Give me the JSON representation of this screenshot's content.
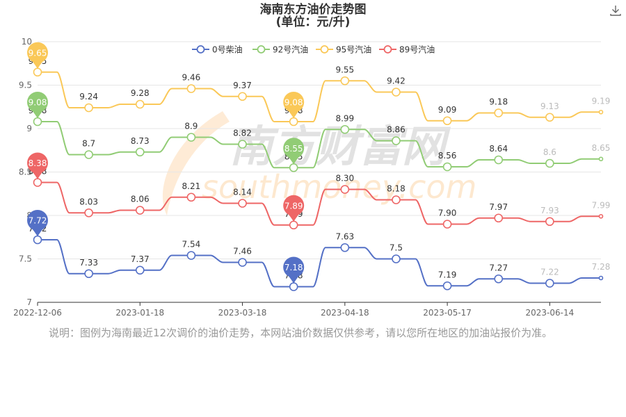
{
  "title": "海南东方油价走势图",
  "subtitle": "(单位：元/升)",
  "watermark": {
    "cn": "南方财富网",
    "en": "southmoney.com"
  },
  "icons": {
    "download": "download-icon",
    "marker": "pin-marker"
  },
  "note": "说明：图例为海南最近12次调价的油价走势，本网站油价数据仅供参考，请以您所在地区的加油站报价为准。",
  "chart_data": {
    "type": "line",
    "title": "海南东方油价走势图",
    "subtitle": "(单位：元/升)",
    "legend_position": "top-center",
    "grid": true,
    "ylim": [
      7,
      10
    ],
    "yticks": [
      "7",
      "7.5",
      "8",
      "8.5",
      "9",
      "9.5",
      "10"
    ],
    "x_tick_labels": [
      "2022-12-06",
      "2023-01-18",
      "2023-03-18",
      "2023-04-18",
      "2023-05-17",
      "2023-06-14"
    ],
    "x_tick_indices": [
      0,
      2,
      4,
      6,
      8,
      10
    ],
    "num_points": 12,
    "series": [
      {
        "name": "0号柴油",
        "color": "#5470c6",
        "values": [
          7.72,
          7.33,
          7.37,
          7.54,
          7.46,
          7.18,
          7.63,
          7.5,
          7.19,
          7.27,
          7.22,
          7.28
        ],
        "labels": [
          "7.72",
          "7.33",
          "7.37",
          "7.54",
          "7.46",
          "7.18",
          "7.63",
          "7.5",
          "7.19",
          "7.27",
          "7.22",
          "7.28"
        ],
        "pins": [
          {
            "index": 0,
            "label": "7.72"
          },
          {
            "index": 5,
            "label": "7.18"
          }
        ]
      },
      {
        "name": "92号汽油",
        "color": "#91cc75",
        "values": [
          9.08,
          8.7,
          8.73,
          8.9,
          8.82,
          8.55,
          8.99,
          8.86,
          8.56,
          8.64,
          8.6,
          8.65
        ],
        "labels": [
          "9.08",
          "8.7",
          "8.73",
          "8.9",
          "8.82",
          "8.55",
          "8.99",
          "8.86",
          "8.56",
          "8.64",
          "8.6",
          "8.65"
        ],
        "pins": [
          {
            "index": 0,
            "label": "9.08"
          },
          {
            "index": 5,
            "label": "8.55"
          }
        ]
      },
      {
        "name": "95号汽油",
        "color": "#fac858",
        "values": [
          9.65,
          9.24,
          9.28,
          9.46,
          9.37,
          9.08,
          9.55,
          9.42,
          9.09,
          9.18,
          9.13,
          9.19
        ],
        "labels": [
          "9.65",
          "9.24",
          "9.28",
          "9.46",
          "9.37",
          "9.08",
          "9.55",
          "9.42",
          "9.09",
          "9.18",
          "9.13",
          "9.19"
        ],
        "pins": [
          {
            "index": 0,
            "label": "9.65"
          },
          {
            "index": 5,
            "label": "9.08"
          }
        ]
      },
      {
        "name": "89号汽油",
        "color": "#ee6666",
        "values": [
          8.38,
          8.03,
          8.06,
          8.21,
          8.14,
          7.89,
          8.3,
          8.18,
          7.9,
          7.97,
          7.93,
          7.99
        ],
        "labels": [
          "8.38",
          "8.03",
          "8.06",
          "8.21",
          "8.14",
          "7.89",
          "8.30",
          "8.18",
          "7.90",
          "7.97",
          "7.93",
          "7.99"
        ],
        "pins": [
          {
            "index": 0,
            "label": "8.38"
          },
          {
            "index": 5,
            "label": "7.89"
          }
        ]
      }
    ]
  }
}
